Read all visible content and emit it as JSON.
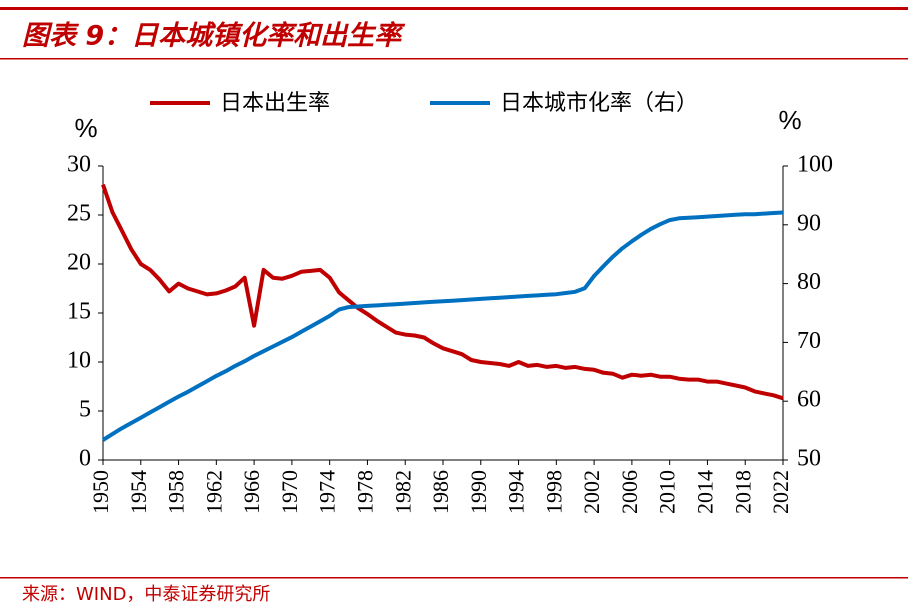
{
  "title": "图表 9：日本城镇化率和出生率",
  "source": "来源：WIND，中泰证券研究所",
  "chart_data": {
    "type": "line",
    "x": [
      1950,
      1951,
      1952,
      1953,
      1954,
      1955,
      1956,
      1957,
      1958,
      1959,
      1960,
      1961,
      1962,
      1963,
      1964,
      1965,
      1966,
      1967,
      1968,
      1969,
      1970,
      1971,
      1972,
      1973,
      1974,
      1975,
      1976,
      1977,
      1978,
      1979,
      1980,
      1981,
      1982,
      1983,
      1984,
      1985,
      1986,
      1987,
      1988,
      1989,
      1990,
      1991,
      1992,
      1993,
      1994,
      1995,
      1996,
      1997,
      1998,
      1999,
      2000,
      2001,
      2002,
      2003,
      2004,
      2005,
      2006,
      2007,
      2008,
      2009,
      2010,
      2011,
      2012,
      2013,
      2014,
      2015,
      2016,
      2017,
      2018,
      2019,
      2020,
      2021,
      2022
    ],
    "series": [
      {
        "name": "日本出生率",
        "color": "#c00000",
        "values": [
          28.1,
          25.3,
          23.4,
          21.5,
          20.0,
          19.4,
          18.4,
          17.2,
          18.0,
          17.5,
          17.2,
          16.9,
          17.0,
          17.3,
          17.7,
          18.6,
          13.7,
          19.4,
          18.6,
          18.5,
          18.8,
          19.2,
          19.3,
          19.4,
          18.6,
          17.1,
          16.3,
          15.5,
          14.9,
          14.2,
          13.6,
          13.0,
          12.8,
          12.7,
          12.5,
          11.9,
          11.4,
          11.1,
          10.8,
          10.2,
          10.0,
          9.9,
          9.8,
          9.6,
          10.0,
          9.6,
          9.7,
          9.5,
          9.6,
          9.4,
          9.5,
          9.3,
          9.2,
          8.9,
          8.8,
          8.4,
          8.7,
          8.6,
          8.7,
          8.5,
          8.5,
          8.3,
          8.2,
          8.2,
          8.0,
          8.0,
          7.8,
          7.6,
          7.4,
          7.0,
          6.8,
          6.6,
          6.3
        ]
      },
      {
        "name": "日本城市化率（右）",
        "color": "#0070c0",
        "axis": "y2",
        "values": [
          53.4,
          54.4,
          55.4,
          56.3,
          57.2,
          58.1,
          59.0,
          59.9,
          60.8,
          61.6,
          62.5,
          63.4,
          64.3,
          65.1,
          66.0,
          66.8,
          67.7,
          68.5,
          69.3,
          70.1,
          70.9,
          71.8,
          72.7,
          73.6,
          74.5,
          75.6,
          76.0,
          76.1,
          76.2,
          76.3,
          76.4,
          76.5,
          76.6,
          76.7,
          76.8,
          76.9,
          77.0,
          77.1,
          77.2,
          77.3,
          77.4,
          77.5,
          77.6,
          77.7,
          77.8,
          77.9,
          78.0,
          78.1,
          78.2,
          78.4,
          78.6,
          79.2,
          81.3,
          83.0,
          84.6,
          86.0,
          87.2,
          88.3,
          89.3,
          90.1,
          90.8,
          91.1,
          91.2,
          91.3,
          91.4,
          91.5,
          91.6,
          91.7,
          91.8,
          91.8,
          91.9,
          92.0,
          92.1
        ]
      }
    ],
    "ylabel": "%",
    "y2label": "%",
    "xlim": [
      1950,
      2022
    ],
    "xticks": [
      1950,
      1954,
      1958,
      1962,
      1966,
      1970,
      1974,
      1978,
      1982,
      1986,
      1990,
      1994,
      1998,
      2002,
      2006,
      2010,
      2014,
      2018,
      2022
    ],
    "ylim": [
      0,
      30
    ],
    "yticks": [
      0,
      5,
      10,
      15,
      20,
      25,
      30
    ],
    "y2lim": [
      50,
      100
    ],
    "y2ticks": [
      50,
      60,
      70,
      80,
      90,
      100
    ],
    "legend": "top"
  }
}
